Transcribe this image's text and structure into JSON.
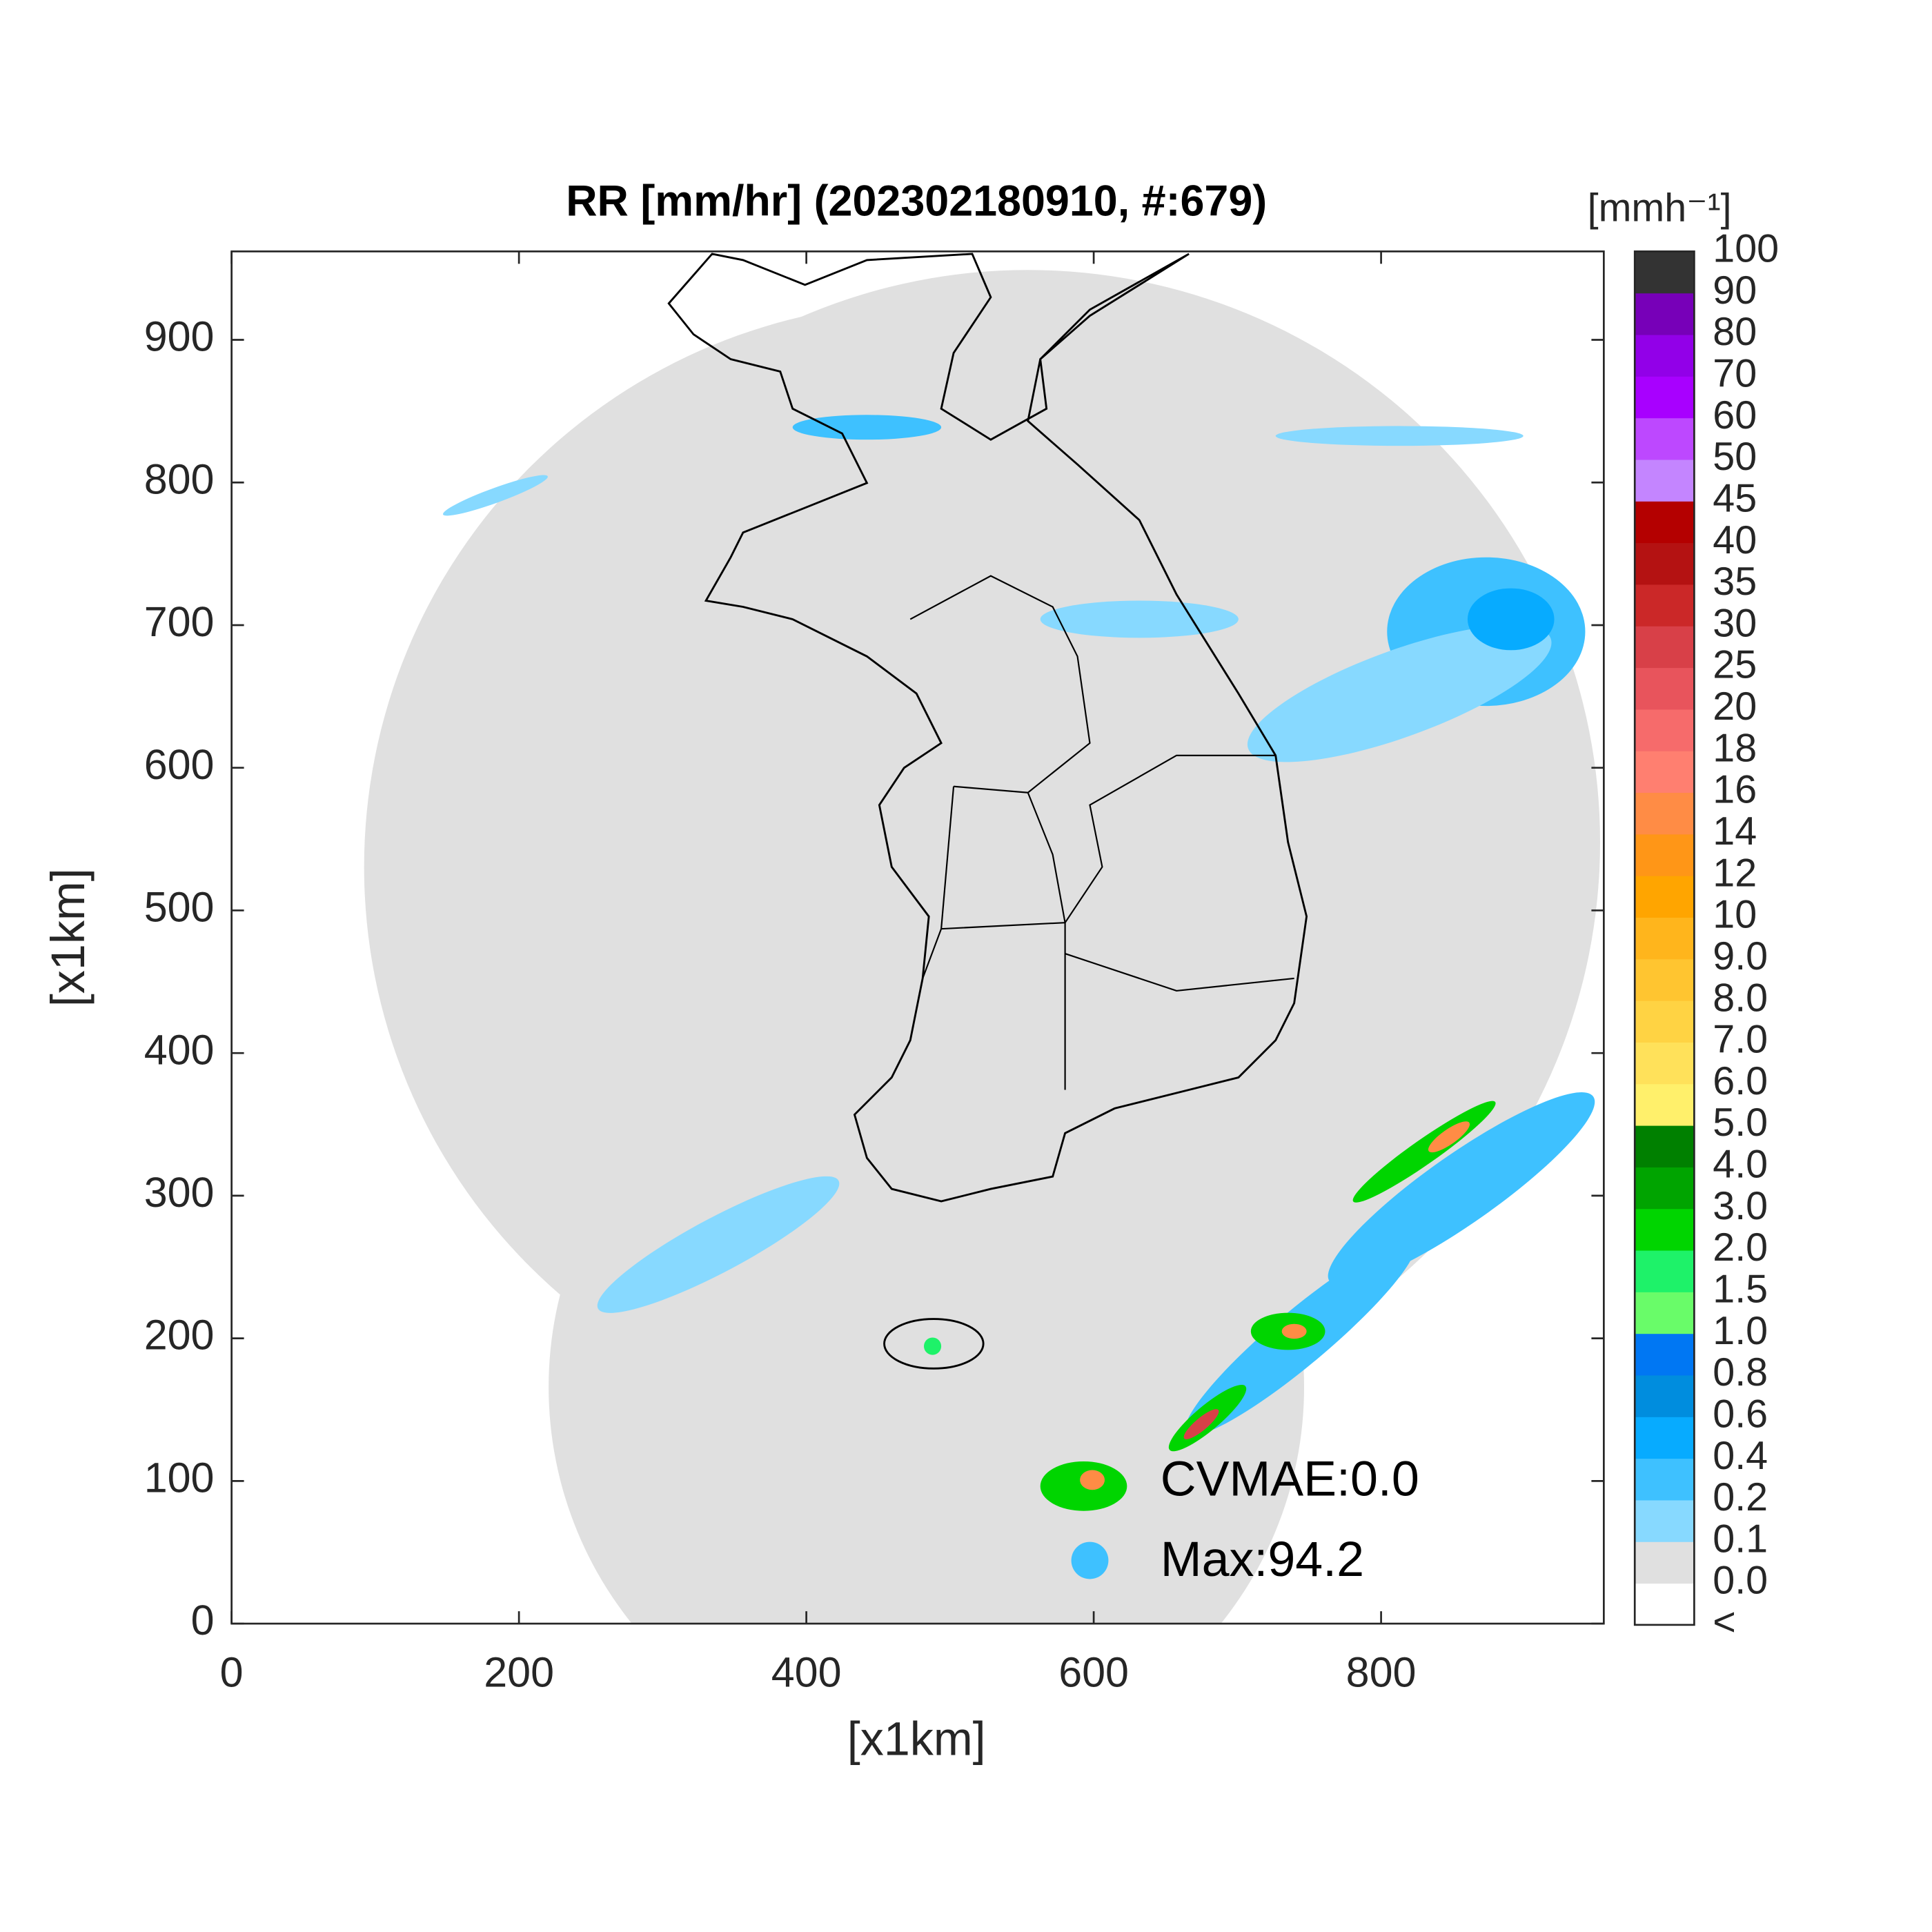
{
  "chart_data": {
    "type": "map",
    "title": "RR [mm/hr] (202302180910, #:679)",
    "xlabel": "[x1km]",
    "ylabel": "[x1km]",
    "xlim": [
      0,
      955
    ],
    "ylim": [
      0,
      962
    ],
    "xticks": [
      0,
      200,
      400,
      600,
      800
    ],
    "yticks": [
      0,
      100,
      200,
      300,
      400,
      500,
      600,
      700,
      800,
      900
    ],
    "colorbar": {
      "label": "[mmh⁻¹]",
      "levels": [
        "<",
        "0.0",
        "0.1",
        "0.2",
        "0.4",
        "0.6",
        "0.8",
        "1.0",
        "1.5",
        "2.0",
        "3.0",
        "4.0",
        "5.0",
        "6.0",
        "7.0",
        "8.0",
        "9.0",
        "10",
        "12",
        "14",
        "16",
        "18",
        "20",
        "25",
        "30",
        "35",
        "40",
        "45",
        "50",
        "60",
        "70",
        "80",
        "90",
        "100"
      ],
      "colors": [
        "#ffffff",
        "#e0e0e0",
        "#87d9ff",
        "#3ec1ff",
        "#07abff",
        "#008dde",
        "#0077f3",
        "#69fc69",
        "#1ef269",
        "#00d500",
        "#00a400",
        "#008000",
        "#fff06b",
        "#ffe15a",
        "#ffd343",
        "#ffc530",
        "#ffb51c",
        "#ffa500",
        "#ff9617",
        "#ff8c45",
        "#ff7f70",
        "#f66b6b",
        "#e8545c",
        "#d84048",
        "#cb2828",
        "#b41212",
        "#b40000",
        "#c485ff",
        "#bd48ff",
        "#a800ff",
        "#9200e8",
        "#7700b8",
        "#333333"
      ]
    },
    "annotations": [
      "CVMAE:0.0",
      "Max:94.2"
    ]
  }
}
